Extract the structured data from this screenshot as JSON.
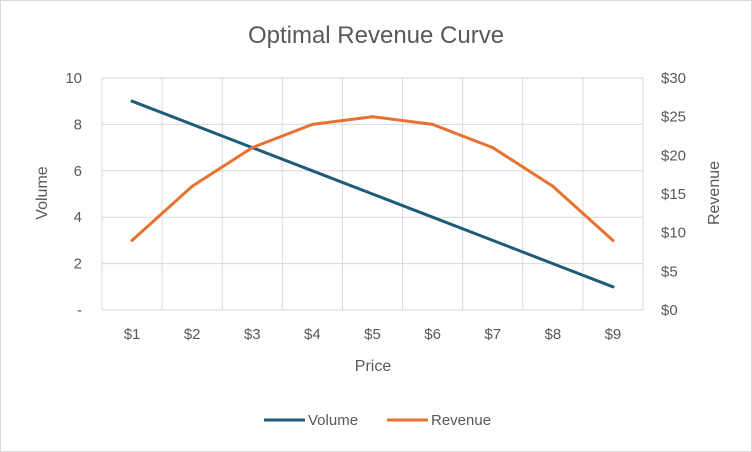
{
  "chart_data": {
    "type": "line",
    "title": "Optimal Revenue Curve",
    "xlabel": "Price",
    "ylabel_left": "Volume",
    "ylabel_right": "Revenue",
    "categories": [
      "$1",
      "$2",
      "$3",
      "$4",
      "$5",
      "$6",
      "$7",
      "$8",
      "$9"
    ],
    "series": [
      {
        "name": "Volume",
        "axis": "left",
        "color": "#1f5c7a",
        "values": [
          9,
          8,
          7,
          6,
          5,
          4,
          3,
          2,
          1
        ]
      },
      {
        "name": "Revenue",
        "axis": "right",
        "color": "#e97132",
        "values": [
          9,
          16,
          21,
          24,
          25,
          24,
          21,
          16,
          9
        ]
      }
    ],
    "left_axis": {
      "min": 0,
      "max": 10,
      "ticks": [
        0,
        2,
        4,
        6,
        8,
        10
      ],
      "tick_labels": [
        "-",
        "2",
        "4",
        "6",
        "8",
        "10"
      ]
    },
    "right_axis": {
      "min": 0,
      "max": 30,
      "ticks": [
        0,
        5,
        10,
        15,
        20,
        25,
        30
      ],
      "tick_labels": [
        "$0",
        "$5",
        "$10",
        "$15",
        "$20",
        "$25",
        "$30"
      ]
    },
    "grid": true,
    "legend": {
      "position": "bottom"
    }
  }
}
